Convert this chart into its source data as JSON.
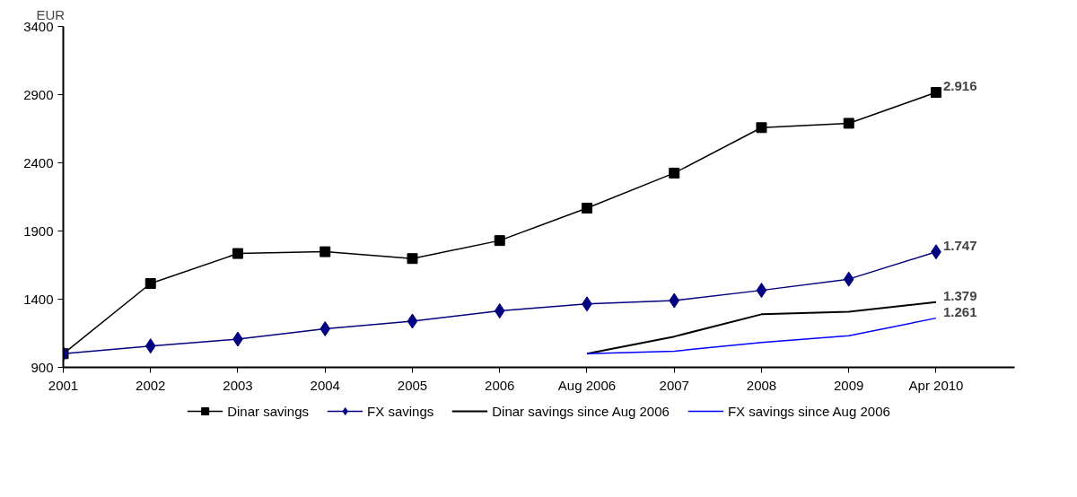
{
  "chart_data": {
    "type": "line",
    "ylabel": "EUR",
    "categories": [
      "2001",
      "2002",
      "2003",
      "2004",
      "2005",
      "2006",
      "Aug 2006",
      "2007",
      "2008",
      "2009",
      "Apr 2010"
    ],
    "ylim": [
      900,
      3400
    ],
    "yticks": [
      900,
      1400,
      1900,
      2400,
      2900,
      3400
    ],
    "grid": false,
    "legend": "bottom",
    "series": [
      {
        "name": "Dinar savings",
        "color": "#000000",
        "marker": "square",
        "values": [
          1000,
          1515,
          1735,
          1748,
          1698,
          1830,
          2068,
          2325,
          2658,
          2690,
          2916
        ],
        "value_labels": [
          null,
          null,
          null,
          null,
          null,
          null,
          null,
          null,
          null,
          null,
          "2.916"
        ]
      },
      {
        "name": "FX savings",
        "color": "#000080",
        "marker": "diamond",
        "values": [
          1000,
          1057,
          1107,
          1183,
          1239,
          1314,
          1365,
          1390,
          1465,
          1547,
          1747
        ],
        "value_labels": [
          null,
          null,
          null,
          null,
          null,
          null,
          null,
          null,
          null,
          null,
          "1.747"
        ]
      },
      {
        "name": "Dinar savings since Aug 2006",
        "color": "#000000",
        "marker": "none",
        "values": [
          null,
          null,
          null,
          null,
          null,
          null,
          1000,
          1126,
          1289,
          1308,
          1379
        ],
        "value_labels": [
          null,
          null,
          null,
          null,
          null,
          null,
          null,
          null,
          null,
          null,
          "1.379"
        ]
      },
      {
        "name": "FX savings since Aug 2006",
        "color": "#0000ff",
        "marker": "none",
        "values": [
          null,
          null,
          null,
          null,
          null,
          null,
          1000,
          1019,
          1082,
          1132,
          1261
        ],
        "value_labels": [
          null,
          null,
          null,
          null,
          null,
          null,
          null,
          null,
          null,
          null,
          "1.261"
        ]
      }
    ]
  }
}
